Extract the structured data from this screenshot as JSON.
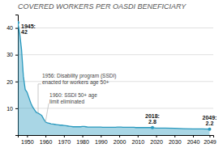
{
  "chart_data": {
    "type": "area",
    "title": "COVERED WORKERS PER OASDI BENEFICIARY",
    "color": "#2999be",
    "x": [
      1945,
      1946,
      1947,
      1948,
      1949,
      1950,
      1951,
      1952,
      1953,
      1954,
      1955,
      1956,
      1957,
      1958,
      1959,
      1960,
      1961,
      1962,
      1963,
      1964,
      1965,
      1966,
      1967,
      1968,
      1969,
      1970,
      1971,
      1972,
      1973,
      1974,
      1975,
      1976,
      1977,
      1978,
      1979,
      1980,
      1981,
      1982,
      1983,
      1984,
      1985,
      1986,
      1987,
      1988,
      1989,
      1990,
      1991,
      1992,
      1993,
      1994,
      1995,
      1996,
      1997,
      1998,
      1999,
      2000,
      2001,
      2002,
      2003,
      2004,
      2005,
      2006,
      2007,
      2008,
      2009,
      2010,
      2011,
      2012,
      2013,
      2014,
      2015,
      2016,
      2017,
      2018,
      2019,
      2020,
      2025,
      2030,
      2035,
      2040,
      2045,
      2049
    ],
    "values": [
      42,
      38,
      32,
      22,
      17,
      16,
      14,
      12,
      10.5,
      9.5,
      8.5,
      8.2,
      7.8,
      7.3,
      6.0,
      4.9,
      4.6,
      4.4,
      4.2,
      4.1,
      4.0,
      3.9,
      3.8,
      3.7,
      3.7,
      3.6,
      3.5,
      3.4,
      3.3,
      3.2,
      3.1,
      3.1,
      3.1,
      3.1,
      3.1,
      3.2,
      3.2,
      3.1,
      3.0,
      3.0,
      3.0,
      3.0,
      3.0,
      3.0,
      3.0,
      3.0,
      2.9,
      2.9,
      2.9,
      2.9,
      2.9,
      2.9,
      2.9,
      2.9,
      3.0,
      3.0,
      3.0,
      2.9,
      2.9,
      2.9,
      2.9,
      2.9,
      2.9,
      2.9,
      2.8,
      2.8,
      2.8,
      2.8,
      2.8,
      2.8,
      2.8,
      2.8,
      2.8,
      2.8,
      2.7,
      2.6,
      2.6,
      2.5,
      2.4,
      2.3,
      2.3,
      2.2
    ],
    "xlim": [
      1945,
      2051
    ],
    "ylim": [
      0,
      45
    ],
    "xticks": [
      1950,
      1960,
      1970,
      1980,
      1990,
      2000,
      2010,
      2020,
      2030,
      2040,
      2049
    ],
    "yticks": [
      10,
      20,
      30,
      40
    ],
    "grid": true,
    "annotations": [
      {
        "text": [
          "1945:",
          "42"
        ],
        "x": 1945,
        "y": 42
      },
      {
        "text": [
          "1956: Disability program (SSDI)",
          "enacted for workers age 50+"
        ],
        "x": 1956,
        "y": 8.2
      },
      {
        "text": [
          "1960: SSDI 50+ age",
          "limit eliminated"
        ],
        "x": 1960,
        "y": 4.9
      },
      {
        "text": [
          "2018:",
          "2.8"
        ],
        "x": 2018,
        "y": 2.8
      },
      {
        "text": [
          "2049:",
          "2.2"
        ],
        "x": 2049,
        "y": 2.2
      }
    ]
  }
}
